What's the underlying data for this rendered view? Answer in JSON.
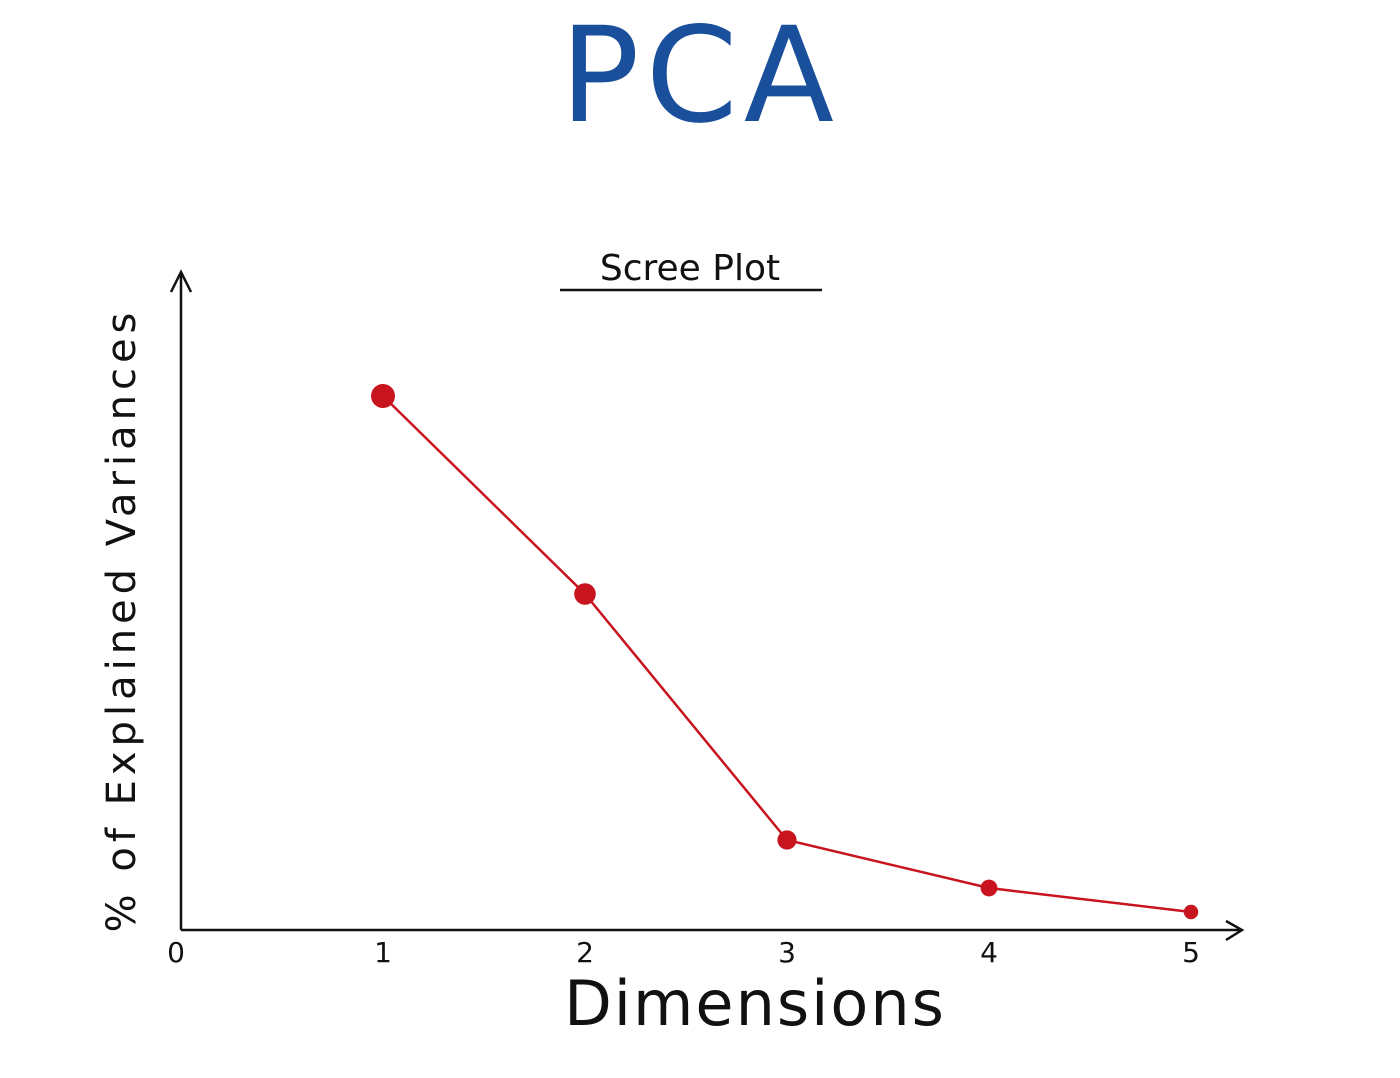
{
  "page_title": "PCA",
  "colors": {
    "title": "#1a4f9c",
    "series": "#c8141e",
    "axis": "#111111"
  },
  "chart_data": {
    "type": "line",
    "title": "Scree Plot",
    "xlabel": "Dimensions",
    "ylabel": "% of Explained Variances",
    "origin_label": "0",
    "x_ticks": [
      1,
      2,
      3,
      4,
      5
    ],
    "xlim": [
      0,
      5
    ],
    "ylim": [
      0,
      100
    ],
    "grid": false,
    "series": [
      {
        "x": [
          1,
          2,
          3,
          4,
          5
        ],
        "values": [
          89,
          56,
          15,
          7,
          3
        ]
      }
    ]
  }
}
